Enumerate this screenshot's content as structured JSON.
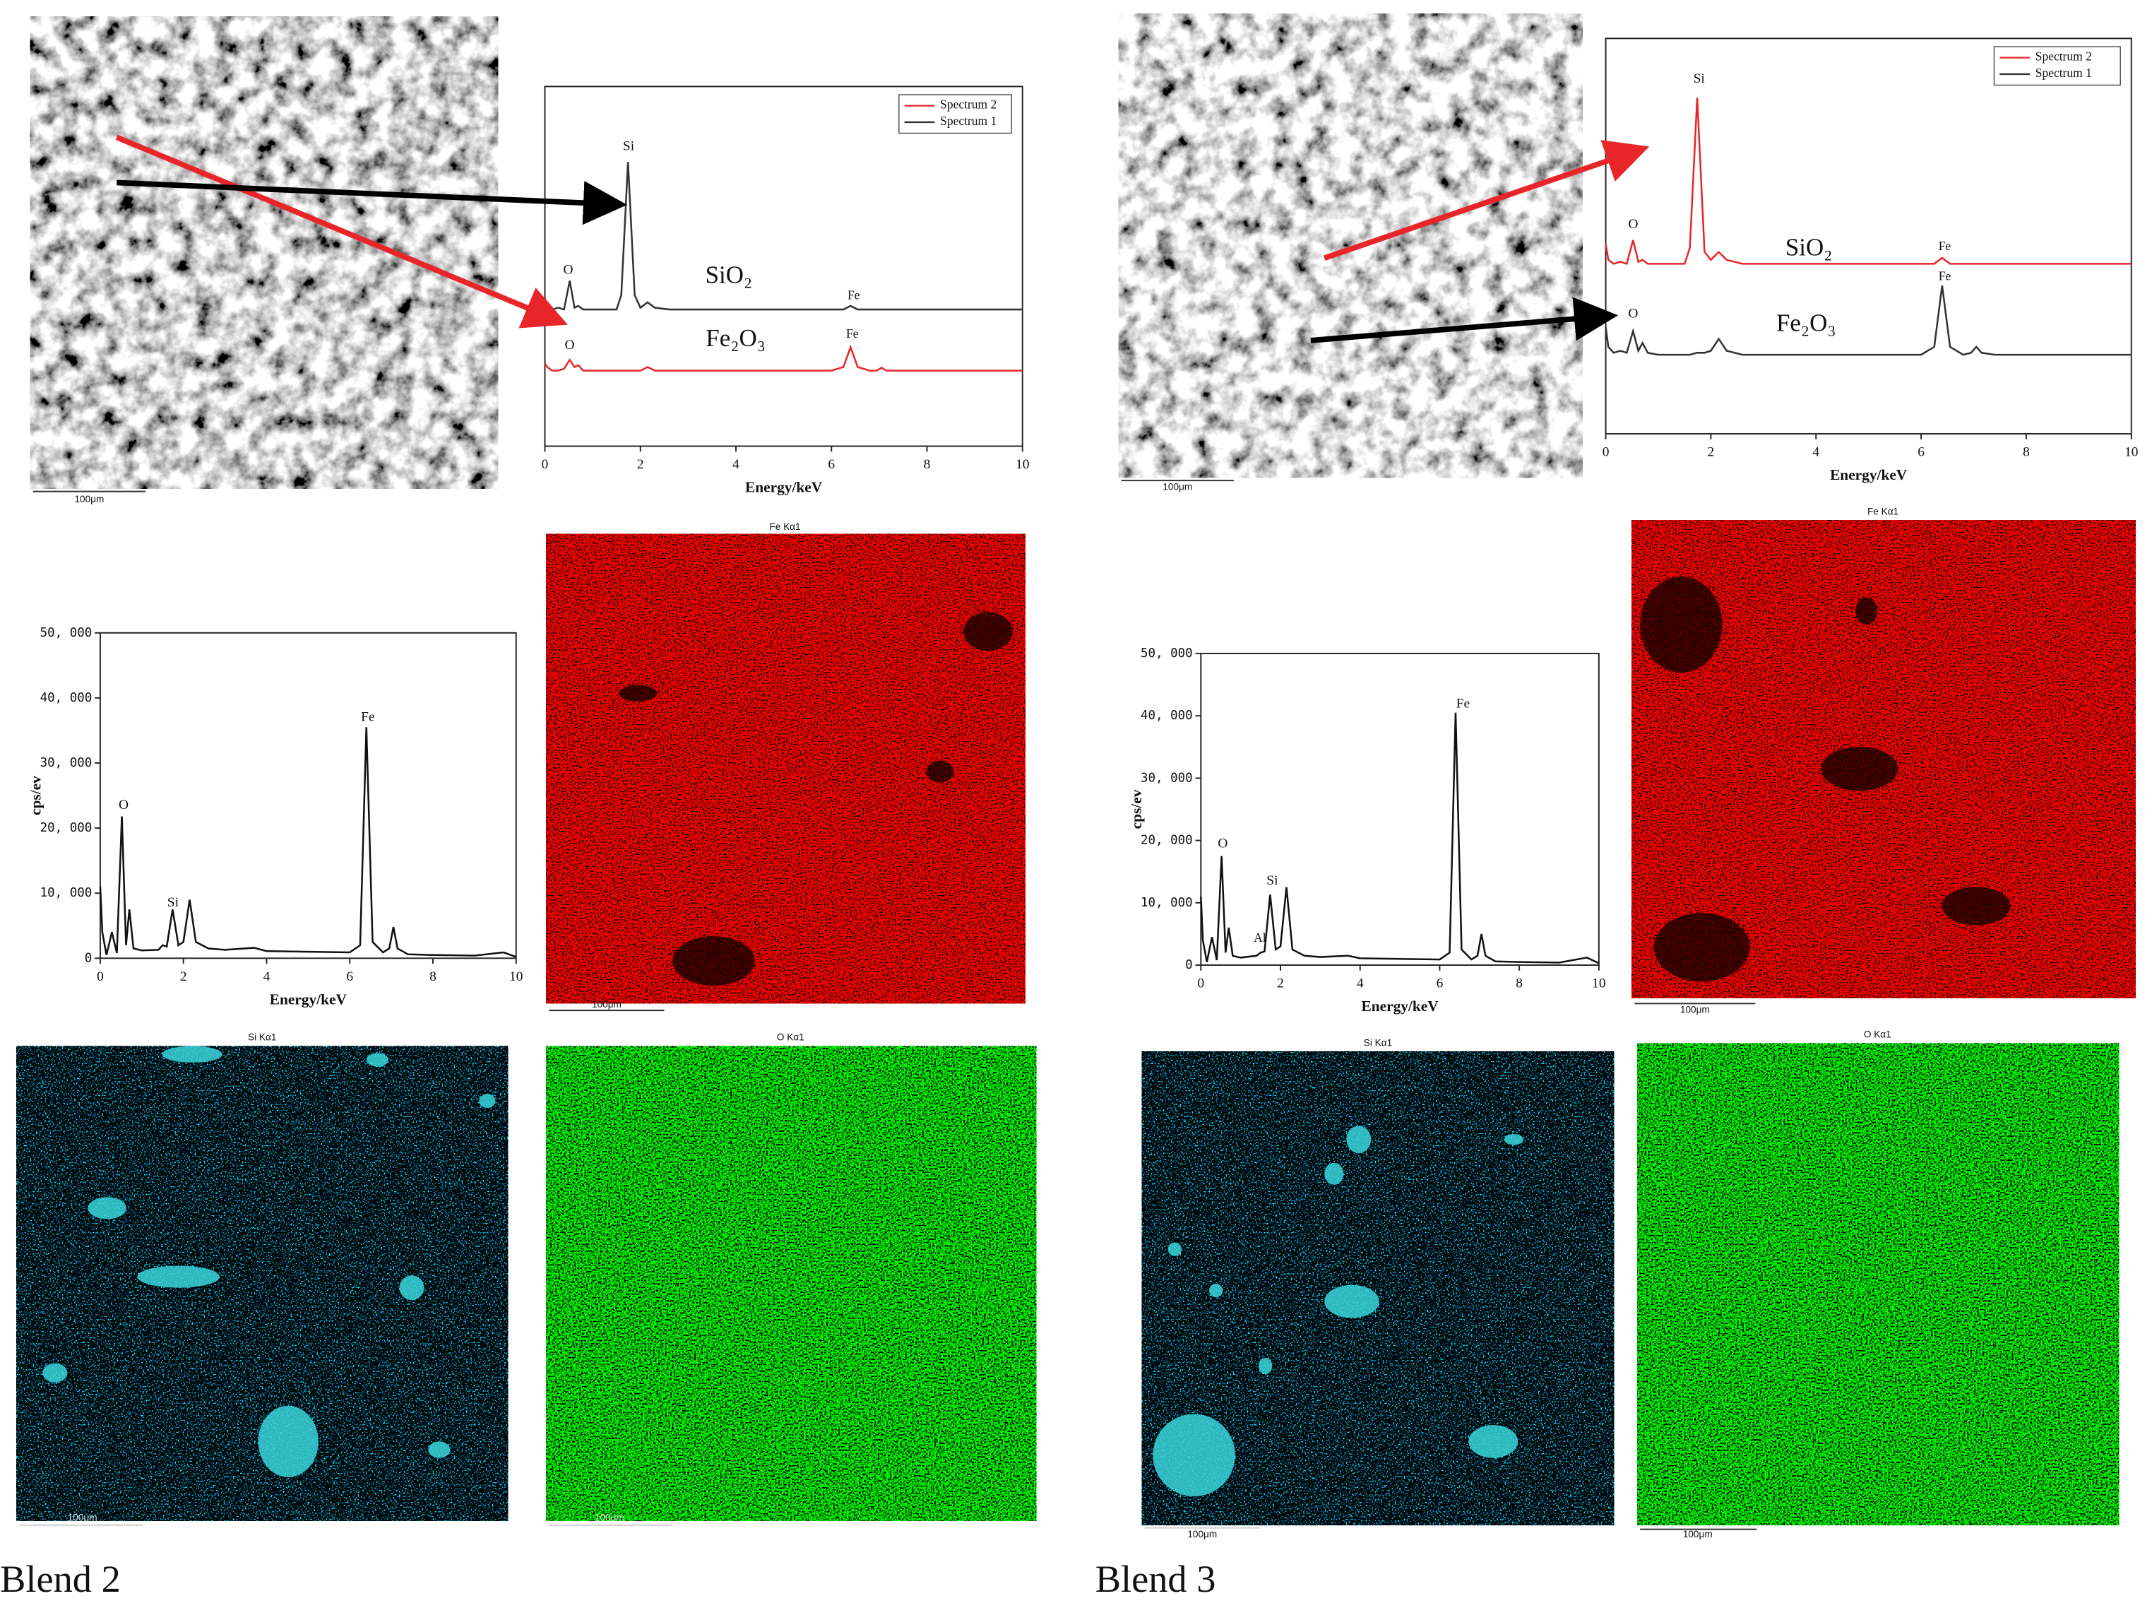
{
  "chart_data": [
    {
      "type": "line",
      "xlabel": "Energy/keV",
      "xlim": [
        0,
        10
      ],
      "xticks": [
        0,
        2,
        4,
        6,
        8,
        10
      ],
      "ylim": [
        0,
        100
      ],
      "legend": "upper right",
      "x": [
        0,
        0.05,
        0.15,
        0.28,
        0.4,
        0.52,
        0.62,
        0.7,
        0.8,
        1.0,
        1.4,
        1.5,
        1.6,
        1.74,
        1.88,
        2.0,
        2.15,
        2.3,
        2.6,
        3.0,
        3.7,
        4.0,
        5.0,
        6.0,
        6.25,
        6.4,
        6.55,
        6.8,
        6.95,
        7.05,
        7.15,
        7.4,
        8.0,
        9.0,
        9.7,
        10.0
      ],
      "series": [
        {
          "name": "Spectrum 2",
          "color": "#e8262a",
          "values": [
            23,
            22,
            21,
            21,
            21.5,
            24,
            22,
            22.5,
            21,
            21,
            21,
            21,
            21,
            21,
            21,
            21,
            22,
            21,
            21,
            21,
            21,
            21,
            21,
            21,
            22,
            27.5,
            22,
            21,
            21,
            21.8,
            21,
            21,
            21,
            21,
            21,
            21
          ]
        },
        {
          "name": "Spectrum 1",
          "color": "#333333",
          "values": [
            41,
            39,
            38,
            38.5,
            38,
            46,
            38.5,
            39,
            38,
            38,
            38,
            38,
            42,
            79,
            42,
            38.5,
            40,
            38.5,
            38,
            38,
            38,
            38,
            38,
            38,
            38,
            39,
            38,
            38,
            38,
            38,
            38,
            38,
            38,
            38,
            38,
            38
          ]
        }
      ],
      "annotations": [
        "Si",
        "O",
        "SiO₂",
        "Fe",
        "O",
        "Fe₂O₃",
        "Fe"
      ]
    },
    {
      "type": "line",
      "xlabel": "Energy/keV",
      "ylabel": "cps/ev",
      "xlim": [
        0,
        10
      ],
      "xticks": [
        0,
        2,
        4,
        6,
        8,
        10
      ],
      "ylim": [
        0,
        50000
      ],
      "yticks": [
        0,
        {
          "value": 10000,
          "label": "10, 000"
        },
        {
          "value": 20000,
          "label": "20, 000"
        },
        {
          "value": 30000,
          "label": "30, 000"
        },
        {
          "value": 40000,
          "label": "40, 000"
        },
        {
          "value": 50000,
          "label": "50, 000"
        }
      ],
      "x": [
        0,
        0.05,
        0.15,
        0.28,
        0.4,
        0.52,
        0.62,
        0.7,
        0.8,
        1.0,
        1.4,
        1.5,
        1.6,
        1.74,
        1.88,
        2.0,
        2.15,
        2.3,
        2.6,
        3.0,
        3.7,
        4.0,
        5.0,
        6.0,
        6.25,
        6.4,
        6.55,
        6.8,
        6.95,
        7.05,
        7.15,
        7.4,
        8.0,
        9.0,
        9.7,
        10.0
      ],
      "series": [
        {
          "color": "#111111",
          "values": [
            11000,
            4000,
            500,
            4000,
            800,
            21800,
            2000,
            7500,
            1500,
            1200,
            1300,
            2000,
            1800,
            7500,
            2000,
            2500,
            9000,
            2500,
            1500,
            1300,
            1600,
            1100,
            1000,
            900,
            2000,
            35500,
            2500,
            900,
            1500,
            4800,
            1500,
            600,
            500,
            400,
            900,
            200
          ]
        }
      ],
      "annotations": [
        "O",
        "Si",
        "Fe"
      ]
    },
    {
      "type": "line",
      "xlabel": "Energy/keV",
      "xlim": [
        0,
        10
      ],
      "xticks": [
        0,
        2,
        4,
        6,
        8,
        10
      ],
      "ylim": [
        0,
        100
      ],
      "legend": "upper right",
      "x": [
        0,
        0.05,
        0.15,
        0.28,
        0.4,
        0.52,
        0.62,
        0.7,
        0.8,
        1.0,
        1.4,
        1.5,
        1.6,
        1.74,
        1.88,
        2.0,
        2.15,
        2.3,
        2.6,
        3.0,
        3.7,
        4.0,
        5.0,
        6.0,
        6.25,
        6.4,
        6.55,
        6.8,
        6.95,
        7.05,
        7.15,
        7.4,
        8.0,
        9.0,
        9.7,
        10.0
      ],
      "series": [
        {
          "name": "Spectrum 2",
          "color": "#e8262a",
          "values": [
            48,
            44,
            43,
            43.5,
            43,
            49,
            43.5,
            44,
            43,
            43,
            43,
            43,
            47,
            85,
            46,
            44,
            46,
            44,
            43,
            43,
            43,
            43,
            43,
            43,
            43,
            44.5,
            43,
            43,
            43,
            43,
            43,
            43,
            43,
            43,
            43,
            43
          ]
        },
        {
          "name": "Spectrum 1",
          "color": "#333333",
          "values": [
            27,
            22,
            20.5,
            21,
            20.5,
            26,
            21,
            23,
            20.5,
            20,
            20,
            20,
            20,
            20.5,
            20.5,
            21,
            24,
            21,
            20,
            20,
            20,
            20,
            20,
            20,
            22,
            37.5,
            22,
            20,
            20.5,
            22,
            20.5,
            20,
            20,
            20,
            20,
            20
          ]
        }
      ],
      "annotations": [
        "Si",
        "O",
        "SiO₂",
        "Fe",
        "Fe",
        "O",
        "Fe₂O₃"
      ]
    },
    {
      "type": "line",
      "xlabel": "Energy/keV",
      "ylabel": "cps/ev",
      "xlim": [
        0,
        10
      ],
      "xticks": [
        0,
        2,
        4,
        6,
        8,
        10
      ],
      "ylim": [
        0,
        50000
      ],
      "yticks": [
        0,
        {
          "value": 10000,
          "label": "10, 000"
        },
        {
          "value": 20000,
          "label": "20, 000"
        },
        {
          "value": 30000,
          "label": "30, 000"
        },
        {
          "value": 40000,
          "label": "40, 000"
        },
        {
          "value": 50000,
          "label": "50, 000"
        }
      ],
      "x": [
        0,
        0.05,
        0.15,
        0.28,
        0.4,
        0.52,
        0.62,
        0.7,
        0.8,
        1.0,
        1.4,
        1.5,
        1.6,
        1.74,
        1.88,
        2.0,
        2.15,
        2.3,
        2.6,
        3.0,
        3.7,
        4.0,
        5.0,
        6.0,
        6.25,
        6.4,
        6.55,
        6.8,
        6.95,
        7.05,
        7.15,
        7.4,
        8.0,
        9.0,
        9.7,
        10.0
      ],
      "series": [
        {
          "color": "#111111",
          "values": [
            11000,
            4000,
            500,
            4500,
            800,
            17500,
            2000,
            6000,
            1500,
            1200,
            1500,
            2000,
            2200,
            11300,
            2500,
            3000,
            12500,
            2500,
            1500,
            1300,
            1500,
            1100,
            1000,
            900,
            2000,
            40500,
            2500,
            900,
            1500,
            5000,
            1500,
            600,
            500,
            400,
            1200,
            300
          ]
        }
      ],
      "annotations": [
        "O",
        "Al",
        "Si",
        "Fe"
      ]
    }
  ],
  "figure": {
    "blend2": {
      "caption": "Blend 2",
      "sem_scale": "100μm",
      "maps": [
        {
          "title": "Fe Kα1",
          "scale": "100μm"
        },
        {
          "title": "Si Kα1",
          "scale": "100μm"
        },
        {
          "title": "O Kα1",
          "scale": "100μm"
        }
      ]
    },
    "blend3": {
      "caption": "Blend 3",
      "sem_scale": "100μm",
      "maps": [
        {
          "title": "Fe Kα1",
          "scale": "100μm"
        },
        {
          "title": "Si Kα1",
          "scale": "100μm"
        },
        {
          "title": "O Kα1",
          "scale": "100μm"
        }
      ]
    }
  }
}
